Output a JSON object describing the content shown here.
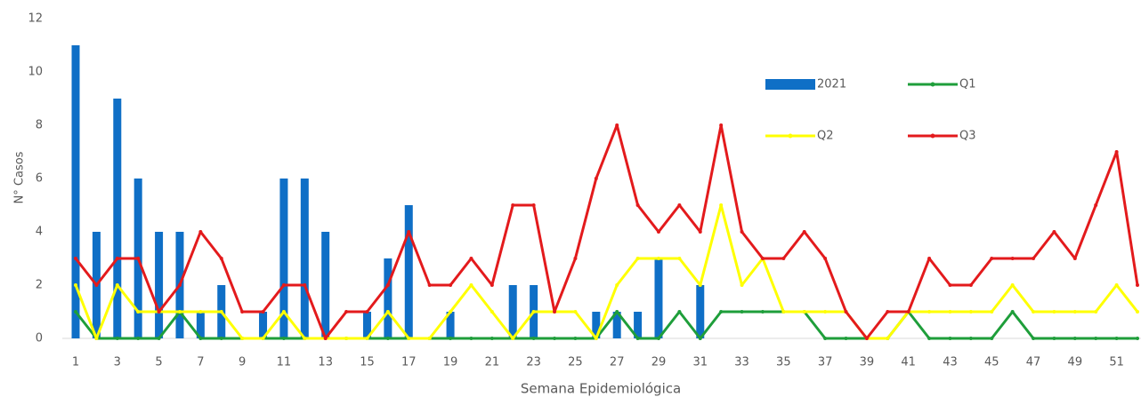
{
  "chart_data": {
    "type": "bar_line",
    "y_label": "N° Casos",
    "x_label": "Semana Epidemiológica",
    "categories": [
      1,
      null,
      3,
      null,
      5,
      null,
      7,
      null,
      9,
      null,
      11,
      null,
      13,
      null,
      15,
      null,
      17,
      null,
      19,
      null,
      21,
      null,
      23,
      null,
      25,
      null,
      27,
      null,
      29,
      null,
      31,
      null,
      33,
      null,
      35,
      null,
      37,
      null,
      39,
      null,
      41,
      null,
      43,
      null,
      45,
      null,
      47,
      null,
      49,
      null,
      51,
      null
    ],
    "ylim": [
      0,
      12
    ],
    "yticks": [
      0,
      2,
      4,
      6,
      8,
      10,
      12
    ],
    "series": [
      {
        "name": "2021",
        "kind": "bar",
        "color": "#0f6fc6",
        "values": [
          11,
          4,
          9,
          6,
          4,
          4,
          1,
          2,
          0,
          1,
          6,
          6,
          4,
          0,
          1,
          3,
          5,
          0,
          1,
          0,
          0,
          2,
          2,
          0,
          0,
          1,
          1,
          1,
          3,
          0,
          2,
          0,
          0,
          0,
          0,
          0,
          0,
          0,
          0,
          0,
          0,
          0,
          0,
          0,
          0,
          0,
          0,
          0,
          0,
          0,
          0,
          0
        ]
      },
      {
        "name": "Q1",
        "kind": "line",
        "color": "#1e9e3a",
        "values": [
          1,
          0,
          0,
          0,
          0,
          1,
          0,
          0,
          0,
          0,
          0,
          0,
          0,
          0,
          0,
          0,
          0,
          0,
          0,
          0,
          0,
          0,
          0,
          0,
          0,
          0,
          1,
          0,
          0,
          1,
          0,
          1,
          1,
          1,
          1,
          1,
          0,
          0,
          0,
          0,
          1,
          0,
          0,
          0,
          0,
          1,
          0,
          0,
          0,
          0,
          0,
          0
        ]
      },
      {
        "name": "Q2",
        "kind": "line",
        "color": "#ffff00",
        "values": [
          2,
          0,
          2,
          1,
          1,
          1,
          1,
          1,
          0,
          0,
          1,
          0,
          0,
          0,
          0,
          1,
          0,
          0,
          1,
          2,
          1,
          0,
          1,
          1,
          1,
          0,
          2,
          3,
          3,
          3,
          2,
          5,
          2,
          3,
          1,
          1,
          1,
          1,
          0,
          0,
          1,
          1,
          1,
          1,
          1,
          2,
          1,
          1,
          1,
          1,
          2,
          1
        ]
      },
      {
        "name": "Q3",
        "kind": "line",
        "color": "#e31a1c",
        "values": [
          3,
          2,
          3,
          3,
          1,
          2,
          4,
          3,
          1,
          1,
          2,
          2,
          0,
          1,
          1,
          2,
          4,
          2,
          2,
          3,
          2,
          5,
          5,
          1,
          3,
          6,
          8,
          5,
          4,
          5,
          4,
          8,
          4,
          3,
          3,
          4,
          3,
          1,
          0,
          1,
          1,
          3,
          2,
          2,
          3,
          3,
          3,
          4,
          3,
          5,
          7,
          2
        ]
      }
    ],
    "legend": "top-right"
  }
}
